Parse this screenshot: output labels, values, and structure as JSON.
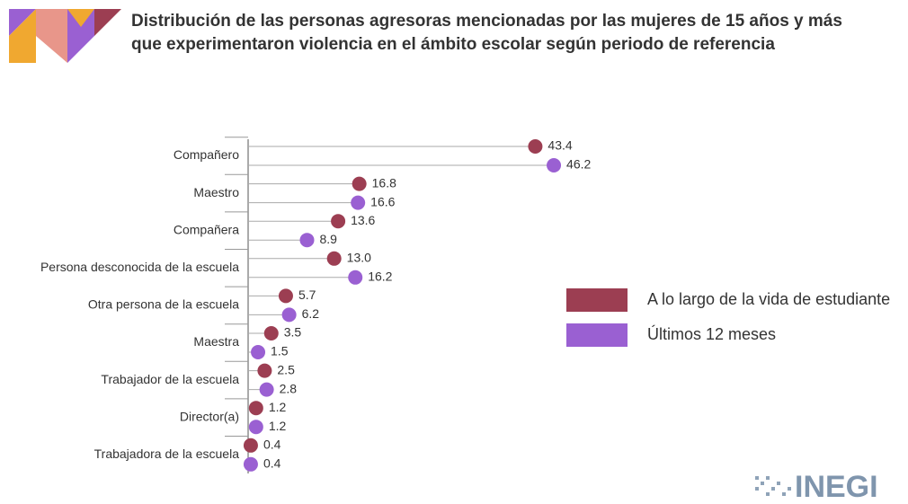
{
  "chart_data": {
    "type": "lollipop",
    "title": "Distribución de las personas agresoras mencionadas por las mujeres de 15 años y más",
    "subtitle": "que experimentaron violencia en el ámbito escolar según periodo de referencia",
    "categories": [
      "Compañero",
      "Maestro",
      "Compañera",
      "Persona desconocida de la escuela",
      "Otra persona de la escuela",
      "Maestra",
      "Trabajador de la escuela",
      "Director(a)",
      "Trabajadora de la escuela"
    ],
    "series": [
      {
        "name": "A lo largo de la vida de estudiante",
        "color": "#9c3e52",
        "values": [
          43.4,
          16.8,
          13.6,
          13.0,
          5.7,
          3.5,
          2.5,
          1.2,
          0.4
        ],
        "value_labels": [
          "43.4",
          "16.8",
          "13.6",
          "13.0",
          "5.7",
          "3.5",
          "2.5",
          "1.2",
          "0.4"
        ]
      },
      {
        "name": "Últimos 12 meses",
        "color": "#9a60d2",
        "values": [
          46.2,
          16.6,
          8.9,
          16.2,
          6.2,
          1.5,
          2.8,
          1.2,
          0.4
        ],
        "value_labels": [
          "46.2",
          "16.6",
          "8.9",
          "16.2",
          "6.2",
          "1.5",
          "2.8",
          "1.2",
          "0.4"
        ]
      }
    ],
    "xlim": [
      0,
      50
    ],
    "legend": "right",
    "logo": "INEGI"
  }
}
